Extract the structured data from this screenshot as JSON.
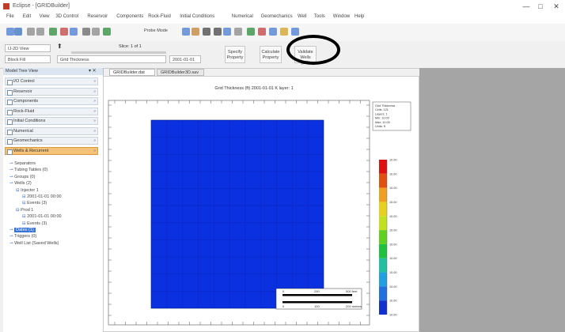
{
  "window": {
    "title": "Eclipse - [GRIDBuilder]",
    "controls": [
      "—",
      "□",
      "✕"
    ]
  },
  "menu": [
    "File",
    "Edit",
    "View",
    "3D Control",
    "Reservoir",
    "Components",
    "Rock-Fluid",
    "Initial Conditions",
    "Numerical",
    "Geomechanics",
    "Well",
    "Tools",
    "Window",
    "Help"
  ],
  "toolbar": {
    "icons": [
      "open-icon",
      "save-icon",
      "undo-icon",
      "redo-icon",
      "grid-icon",
      "probe-icon",
      "zoom-icon",
      "rotate-icon",
      "ruler-icon",
      "layer-icon",
      "refresh-icon",
      "filter-icon",
      "pointer-icon",
      "move-icon",
      "select-icon",
      "lock-icon",
      "plus-icon",
      "minus-icon",
      "search-icon",
      "color-icon",
      "triangle-icon"
    ],
    "probe_label": "Probe Mode"
  },
  "ribbon": {
    "view_combo": "IJ-2D View",
    "layer_label": "Slice: 1 of 1",
    "block_combo": "Block Fill",
    "property_combo": "Grid Thickness",
    "date_combo": "2001-01-01",
    "buttons": [
      {
        "name": "specify-property-button",
        "label": "Specify Property"
      },
      {
        "name": "calculate-property-button",
        "label": "Calculate Property"
      },
      {
        "name": "validate-wells-button",
        "label": "Validate Wells (1/0)"
      }
    ]
  },
  "sidebar": {
    "title": "Model Tree View",
    "sections": [
      "I/O Control",
      "Reservoir",
      "Components",
      "Rock-Fluid",
      "Initial Conditions",
      "Numerical",
      "Geomechanics",
      "Wells & Recurrent"
    ],
    "active_section": "Wells & Recurrent",
    "tree": [
      {
        "indent": 0,
        "text": "Separators"
      },
      {
        "indent": 0,
        "text": "Tubing Tables (0)"
      },
      {
        "indent": 0,
        "text": "Groups (0)"
      },
      {
        "indent": 0,
        "text": "Wells (2)"
      },
      {
        "indent": 1,
        "text": "Injector 1"
      },
      {
        "indent": 2,
        "text": "2001-01-01 00:00"
      },
      {
        "indent": 2,
        "text": "Events (3)"
      },
      {
        "indent": 1,
        "text": "Prod 1"
      },
      {
        "indent": 2,
        "text": "2001-01-01 00:00"
      },
      {
        "indent": 2,
        "text": "Events (3)"
      },
      {
        "indent": 0,
        "text": "Dates (1)"
      },
      {
        "indent": 0,
        "text": "Triggers (0)"
      },
      {
        "indent": 0,
        "text": "Well List (Saved Wells)"
      }
    ],
    "selected_node": "Dates (1)"
  },
  "tabs": [
    "GRIDBuilder.dat (2D)",
    "GRIDBuilder3D.sav"
  ],
  "active_tab": "GRIDBuilder.dat (2D)",
  "plot": {
    "title": "Grid Thickness (ft) 2001-01-01    K layer: 1",
    "fill_color": "#0a30e0",
    "grid_cells": 11,
    "legend_box": [
      "Grid Thickness",
      "Cells: 121",
      "Layers: 1",
      "Min: 10.00",
      "Max: 10.00",
      "Units: ft"
    ],
    "color_scale": {
      "colors": [
        "#e01010",
        "#e05010",
        "#f0a020",
        "#e8d020",
        "#c0e020",
        "#60d020",
        "#20c040",
        "#20c0a0",
        "#20a0e0",
        "#2070e0",
        "#1030d0"
      ],
      "labels": [
        "10.00",
        "10.00",
        "10.00",
        "10.00",
        "10.00",
        "10.00",
        "10.00",
        "10.00",
        "10.00",
        "10.00",
        "10.00",
        "10.00"
      ]
    },
    "scale_bar": {
      "top_labels": [
        "0",
        "250",
        "500 feet"
      ],
      "bottom_labels": [
        "0",
        "100",
        "200 meters"
      ]
    }
  }
}
